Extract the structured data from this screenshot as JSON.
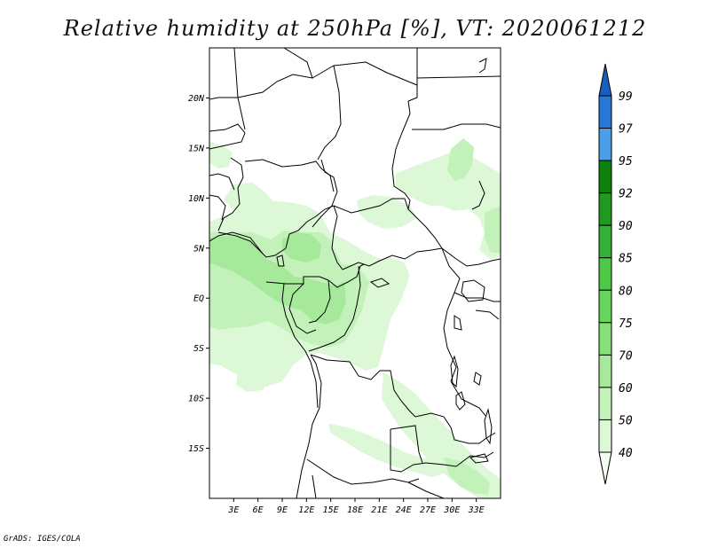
{
  "title": "Relative humidity at 250hPa [%], VT: 2020061212",
  "credit": "GrADS: IGES/COLA",
  "map": {
    "lon_range": [
      0,
      36
    ],
    "lat_range": [
      -20,
      25
    ],
    "lat_ticks": [
      {
        "value": 20,
        "label": "20N"
      },
      {
        "value": 15,
        "label": "15N"
      },
      {
        "value": 10,
        "label": "10N"
      },
      {
        "value": 5,
        "label": "5N"
      },
      {
        "value": 0,
        "label": "EQ"
      },
      {
        "value": -5,
        "label": "5S"
      },
      {
        "value": -10,
        "label": "10S"
      },
      {
        "value": -15,
        "label": "15S"
      }
    ],
    "lon_ticks": [
      {
        "value": 3,
        "label": "3E"
      },
      {
        "value": 6,
        "label": "6E"
      },
      {
        "value": 9,
        "label": "9E"
      },
      {
        "value": 12,
        "label": "12E"
      },
      {
        "value": 15,
        "label": "15E"
      },
      {
        "value": 18,
        "label": "18E"
      },
      {
        "value": 21,
        "label": "21E"
      },
      {
        "value": 24,
        "label": "24E"
      },
      {
        "value": 27,
        "label": "27E"
      },
      {
        "value": 30,
        "label": "30E"
      },
      {
        "value": 33,
        "label": "33E"
      }
    ]
  },
  "colorbar": {
    "levels": [
      "40",
      "50",
      "60",
      "70",
      "75",
      "80",
      "85",
      "90",
      "92",
      "95",
      "97",
      "99"
    ],
    "colors": [
      "#f1fdee",
      "#dcf8d6",
      "#c3f1ba",
      "#a6e99a",
      "#88e07a",
      "#68d55c",
      "#4ec846",
      "#35b135",
      "#1f9a1f",
      "#0c820c",
      "#4b9ee8",
      "#2a78d5",
      "#1a5fc0"
    ]
  },
  "humidity_areas": [
    {
      "name": "west-coastal-band",
      "level": "60"
    },
    {
      "name": "congo-basin-band",
      "level": "70"
    },
    {
      "name": "sahel-east-patch",
      "level": "60"
    },
    {
      "name": "southeast-band",
      "level": "60"
    }
  ]
}
